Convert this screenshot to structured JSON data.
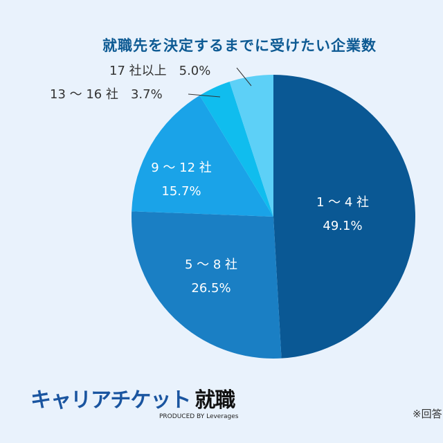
{
  "chart_data": {
    "type": "pie",
    "title": "就職先を決定するまでに受けたい企業数",
    "categories": [
      "1 〜 4 社",
      "5 〜 8 社",
      "9 〜 12 社",
      "13 〜 16 社",
      "17 社以上"
    ],
    "values": [
      49.1,
      26.5,
      15.7,
      3.7,
      5.0
    ],
    "value_labels": [
      "49.1%",
      "26.5%",
      "15.7%",
      "3.7%",
      "5.0%"
    ],
    "colors": [
      "#0a5894",
      "#1a7fc4",
      "#1aa3e8",
      "#10bdee",
      "#5dd0f7"
    ],
    "start": "top",
    "direction": "clockwise"
  },
  "branding": {
    "logo": "キャリアチケット",
    "logo_suffix": "就職",
    "produced_by": "PRODUCED BY Leverages"
  },
  "note": "※回答"
}
